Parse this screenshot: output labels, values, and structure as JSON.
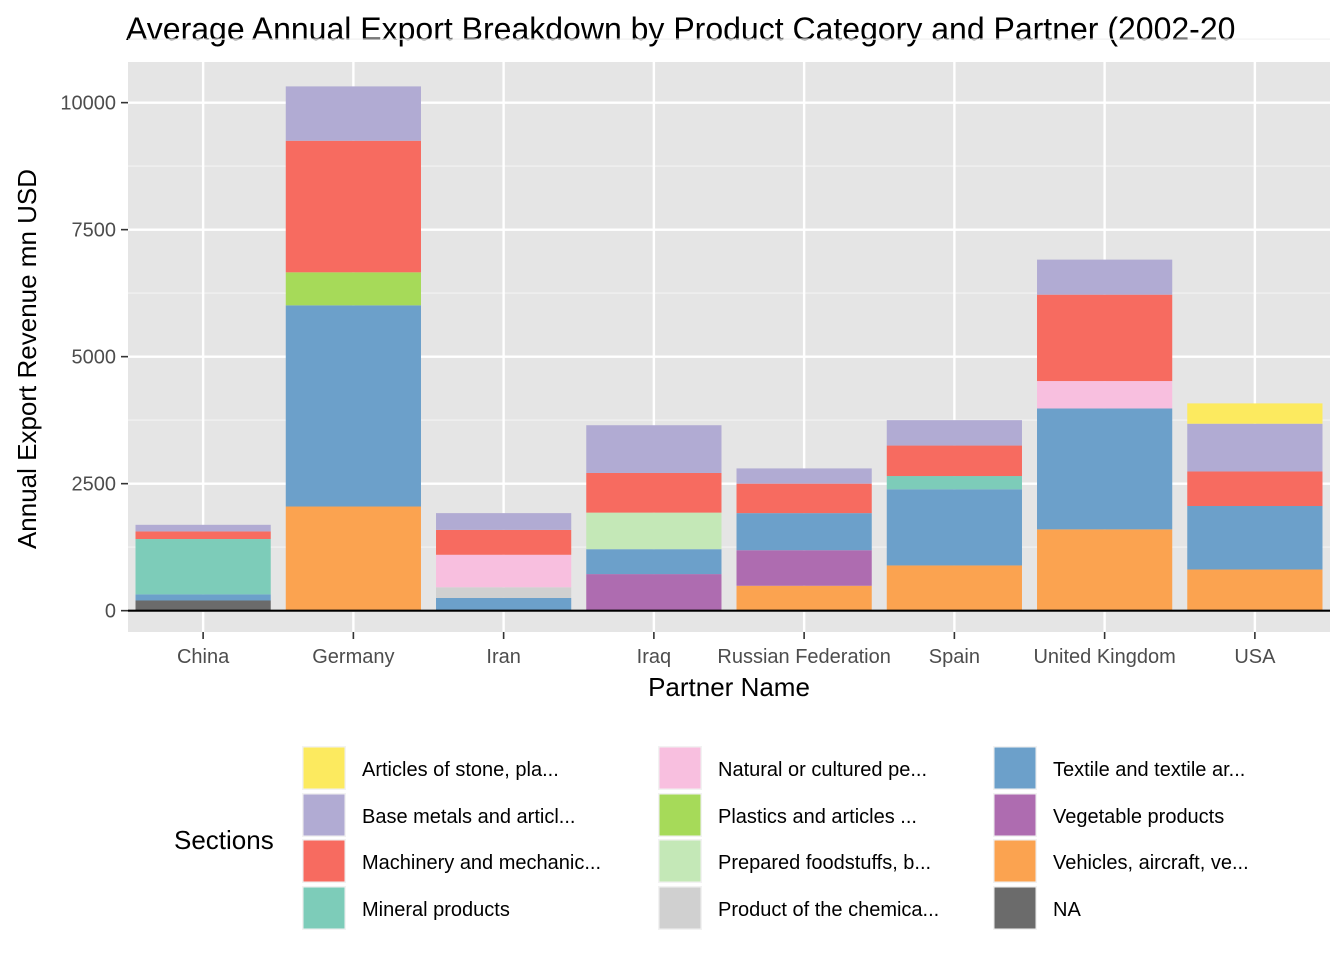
{
  "chart_data": {
    "type": "bar",
    "stacked": true,
    "title": "Average Annual Export Breakdown by Product Category and Partner (2002-20",
    "xlabel": "Partner Name",
    "ylabel": "Annual Export Revenue mn USD",
    "ylim": [
      -420,
      10800
    ],
    "yticks": [
      0,
      2500,
      5000,
      7500,
      10000
    ],
    "grid": true,
    "categories": [
      "China",
      "Germany",
      "Iran",
      "Iraq",
      "Russian Federation",
      "Spain",
      "United Kingdom",
      "USA"
    ],
    "legend": {
      "title": "Sections",
      "position": "bottom",
      "entries": [
        "Articles of stone, pla...",
        "Base metals and articl...",
        "Machinery and mechanic...",
        "Mineral products",
        "Natural or cultured pe...",
        "Plastics and articles ...",
        "Prepared foodstuffs, b...",
        "Product of the chemica...",
        "Textile and textile ar...",
        "Vegetable products",
        "Vehicles, aircraft, ve...",
        "NA"
      ]
    },
    "series": [
      {
        "name": "NA",
        "color": "#6b6b6b",
        "values": [
          200,
          0,
          0,
          0,
          0,
          0,
          0,
          0
        ]
      },
      {
        "name": "Vehicles, aircraft, ve...",
        "color": "#fba350",
        "values": [
          0,
          2050,
          0,
          0,
          490,
          890,
          1600,
          810
        ]
      },
      {
        "name": "Vegetable products",
        "color": "#ae6cb0",
        "values": [
          0,
          0,
          0,
          720,
          700,
          0,
          0,
          0
        ]
      },
      {
        "name": "Textile and textile ar...",
        "color": "#6ca0ca",
        "values": [
          120,
          3960,
          250,
          490,
          730,
          1500,
          2380,
          1250
        ]
      },
      {
        "name": "Product of the chemica...",
        "color": "#d0d0d0",
        "values": [
          0,
          0,
          210,
          0,
          0,
          0,
          0,
          0
        ]
      },
      {
        "name": "Prepared foodstuffs, b...",
        "color": "#c4e8b7",
        "values": [
          0,
          0,
          0,
          720,
          0,
          0,
          0,
          0
        ]
      },
      {
        "name": "Plastics and articles ...",
        "color": "#a6da59",
        "values": [
          0,
          650,
          0,
          0,
          0,
          0,
          0,
          0
        ]
      },
      {
        "name": "Natural or cultured pe...",
        "color": "#f8bfdf",
        "values": [
          0,
          0,
          640,
          0,
          0,
          0,
          540,
          0
        ]
      },
      {
        "name": "Mineral products",
        "color": "#7dccb9",
        "values": [
          1090,
          0,
          0,
          0,
          0,
          260,
          0,
          0
        ]
      },
      {
        "name": "Machinery and mechanic...",
        "color": "#f76b60",
        "values": [
          150,
          2590,
          490,
          780,
          580,
          600,
          1700,
          680
        ]
      },
      {
        "name": "Base metals and articl...",
        "color": "#b1abd3",
        "values": [
          130,
          1070,
          330,
          940,
          300,
          500,
          690,
          940
        ]
      },
      {
        "name": "Articles of stone, pla...",
        "color": "#fcea5f",
        "values": [
          0,
          0,
          0,
          0,
          0,
          0,
          0,
          400
        ]
      }
    ]
  }
}
